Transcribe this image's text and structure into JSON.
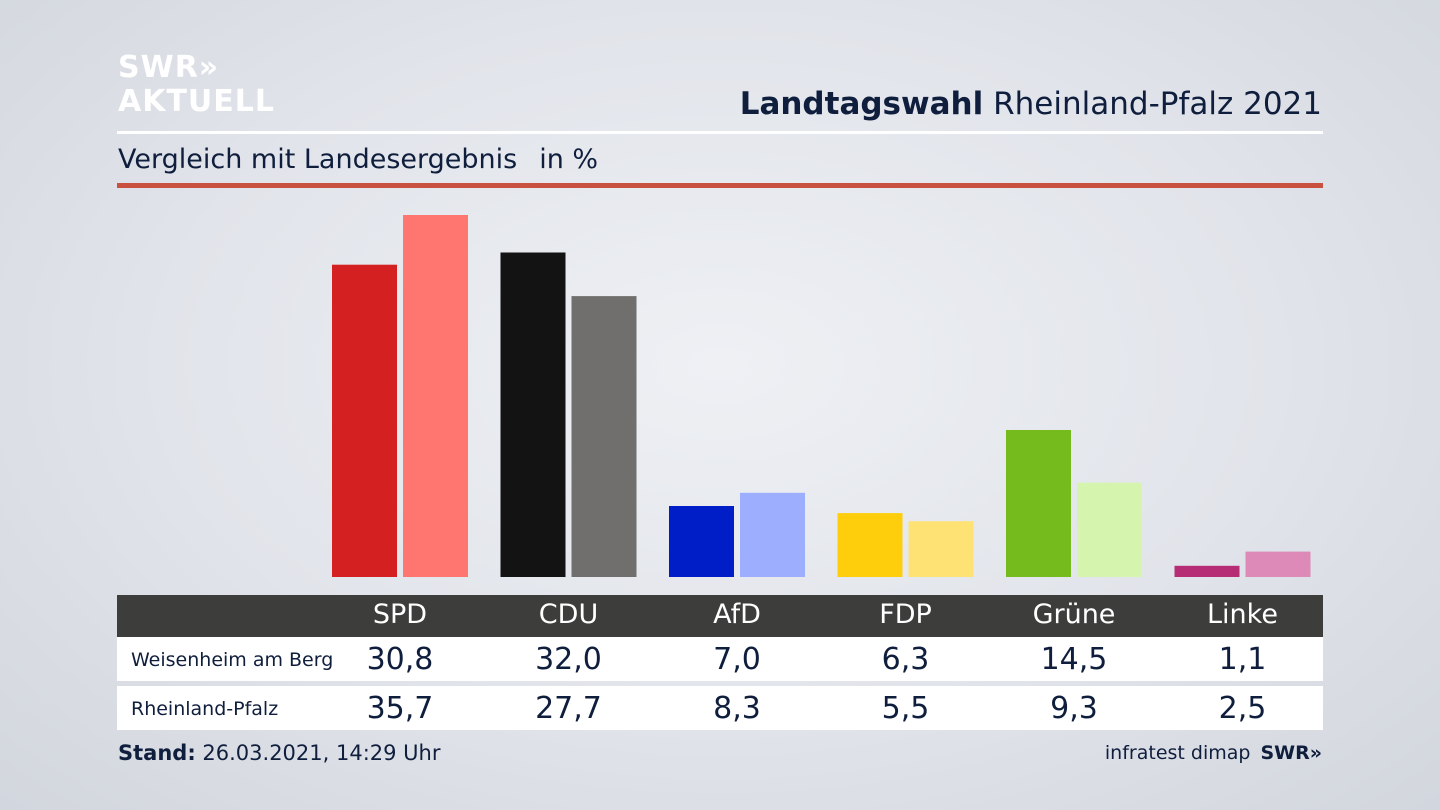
{
  "brand": {
    "line1": "SWR»",
    "line2": "AKTUELL",
    "footer_logo": "SWR»"
  },
  "header": {
    "title_bold": "Landtagswahl",
    "title_rest": " Rheinland-Pfalz 2021"
  },
  "subtitle": {
    "text": "Vergleich mit Landesergebnis",
    "unit": "in %"
  },
  "footer": {
    "stand_label": "Stand:",
    "stand_value": " 26.03.2021, 14:29 Uhr",
    "source": "infratest dimap"
  },
  "chart_data": {
    "type": "bar",
    "categories": [
      "SPD",
      "CDU",
      "AfD",
      "FDP",
      "Grüne",
      "Linke"
    ],
    "series": [
      {
        "name": "Weisenheim am Berg",
        "values": [
          30.8,
          32.0,
          7.0,
          6.3,
          14.5,
          1.1
        ],
        "display": [
          "30,8",
          "32,0",
          "7,0",
          "6,3",
          "14,5",
          "1,1"
        ]
      },
      {
        "name": "Rheinland-Pfalz",
        "values": [
          35.7,
          27.7,
          8.3,
          5.5,
          9.3,
          2.5
        ],
        "display": [
          "35,7",
          "27,7",
          "8,3",
          "5,5",
          "9,3",
          "2,5"
        ]
      }
    ],
    "colors": {
      "SPD": [
        "#d42020",
        "#ff7570"
      ],
      "CDU": [
        "#131313",
        "#706f6e"
      ],
      "AfD": [
        "#001ec8",
        "#9caefd"
      ],
      "FDP": [
        "#fecd0b",
        "#fee274"
      ],
      "Grüne": [
        "#75bb1d",
        "#d5f4ad"
      ],
      "Linke": [
        "#b72d75",
        "#de8ab8"
      ]
    },
    "ylim": [
      0,
      35.7
    ],
    "grid": false,
    "legend": "table-below"
  }
}
